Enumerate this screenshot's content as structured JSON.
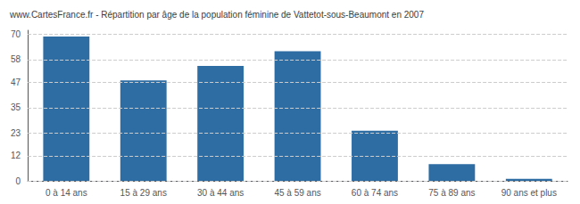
{
  "chart_data": {
    "type": "bar",
    "title": "www.CartesFrance.fr - Répartition par âge de la population féminine de Vattetot-sous-Beaumont en 2007",
    "categories": [
      "0 à 14 ans",
      "15 à 29 ans",
      "30 à 44 ans",
      "45 à 59 ans",
      "60 à 74 ans",
      "75 à 89 ans",
      "90 ans et plus"
    ],
    "values": [
      69,
      48,
      55,
      62,
      24,
      8,
      1
    ],
    "color": "#2e6da4",
    "ylim": [
      0,
      72
    ],
    "yticks": [
      0,
      12,
      23,
      35,
      47,
      58,
      70
    ],
    "grid": true
  }
}
